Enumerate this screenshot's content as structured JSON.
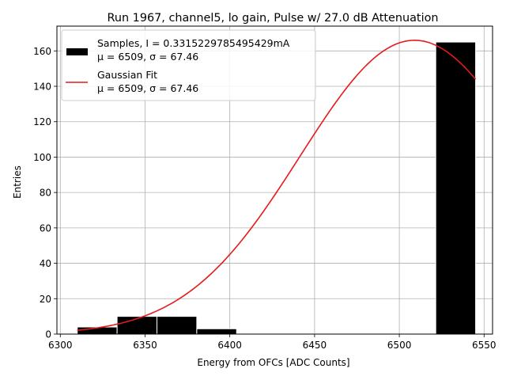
{
  "chart_data": {
    "type": "bar",
    "title": "Run 1967, channel5, lo gain, Pulse w/ 27.0 dB Attenuation",
    "xlabel": "Energy from OFCs [ADC Counts]",
    "ylabel": "Entries",
    "xlim": [
      6298,
      6555
    ],
    "ylim": [
      0,
      174
    ],
    "grid": true,
    "x_ticks": [
      6300,
      6350,
      6400,
      6450,
      6500,
      6550
    ],
    "y_ticks": [
      0,
      20,
      40,
      60,
      80,
      100,
      120,
      140,
      160
    ],
    "histogram": {
      "name": "Samples",
      "bin_edges": [
        6310,
        6333.5,
        6357,
        6380.5,
        6404,
        6427.5,
        6451,
        6474.5,
        6498,
        6521.5,
        6545
      ],
      "values": [
        4,
        10,
        10,
        3,
        0.3,
        0.3,
        0.3,
        0,
        0,
        165
      ],
      "color": "#000000"
    },
    "fit": {
      "name": "Gaussian Fit",
      "mu": 6509,
      "sigma": 67.46,
      "amplitude": 166,
      "x_range": [
        6310,
        6545
      ],
      "color": "#e41a1c"
    },
    "legend": {
      "placement": "top-left",
      "entries": [
        {
          "kind": "bar",
          "line1": "Samples, I = 0.3315229785495429mA",
          "line2": "μ = 6509, σ = 67.46"
        },
        {
          "kind": "line",
          "line1": "Gaussian Fit",
          "line2": "μ = 6509, σ = 67.46"
        }
      ]
    }
  }
}
